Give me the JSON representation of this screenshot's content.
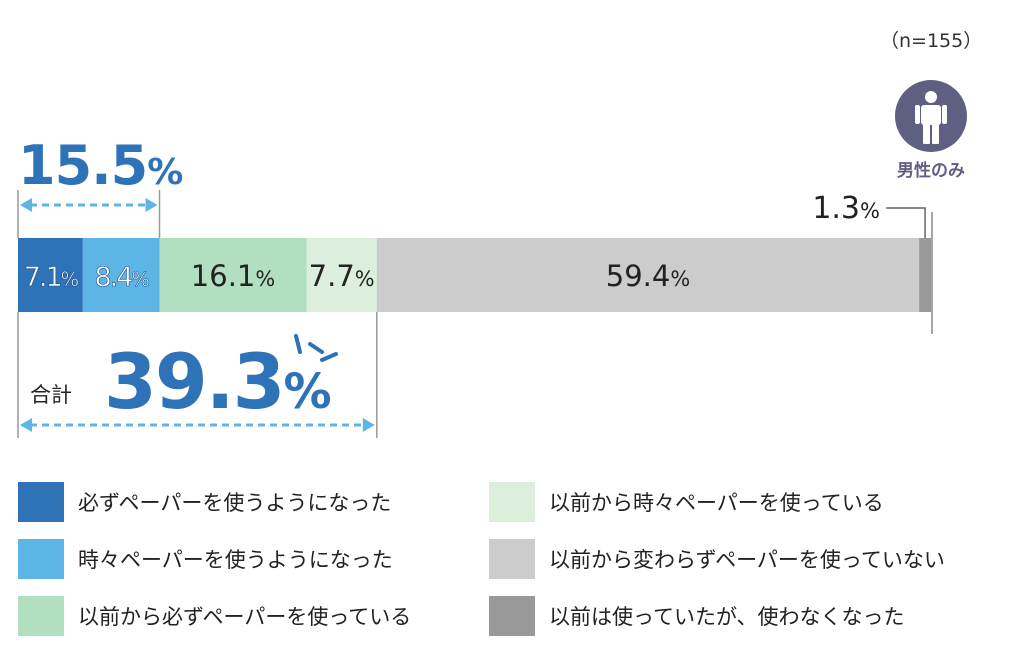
{
  "sample_size": "（n=155）",
  "badge": {
    "label": "男性のみ",
    "icon": "male-person-icon"
  },
  "chart_data": {
    "type": "bar",
    "orientation": "horizontal-stacked-100",
    "unit": "%",
    "series": [
      {
        "name": "必ずペーパーを使うようになった",
        "value": 7.1,
        "label": "7.1%",
        "color": "#2e73b8"
      },
      {
        "name": "時々ペーパーを使うようになった",
        "value": 8.4,
        "label": "8.4%",
        "color": "#5db5e6"
      },
      {
        "name": "以前から必ずペーパーを使っている",
        "value": 16.1,
        "label": "16.1%",
        "color": "#b3dfc1"
      },
      {
        "name": "以前から時々ペーパーを使っている",
        "value": 7.7,
        "label": "7.7%",
        "color": "#dcefdc"
      },
      {
        "name": "以前から変わらずペーパーを使っていない",
        "value": 59.4,
        "label": "59.4%",
        "color": "#cccccc"
      },
      {
        "name": "以前は使っていたが、使わなくなった",
        "value": 1.3,
        "label": "1.3%",
        "color": "#999999"
      }
    ],
    "annotations": {
      "top_bracket": {
        "value": "15.5%",
        "span_series": [
          0,
          1
        ]
      },
      "bottom_bracket": {
        "prefix": "合計",
        "value": "39.3%",
        "span_series": [
          0,
          3
        ]
      }
    }
  }
}
